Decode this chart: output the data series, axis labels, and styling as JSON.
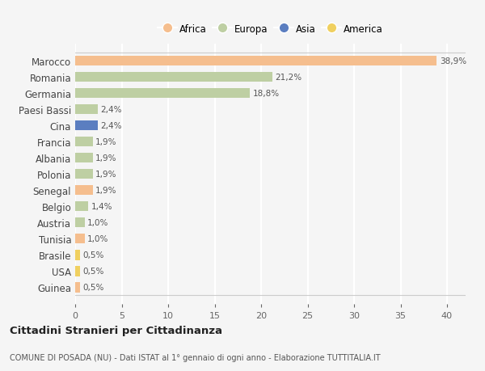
{
  "countries": [
    "Guinea",
    "USA",
    "Brasile",
    "Tunisia",
    "Austria",
    "Belgio",
    "Senegal",
    "Polonia",
    "Albania",
    "Francia",
    "Cina",
    "Paesi Bassi",
    "Germania",
    "Romania",
    "Marocco"
  ],
  "values": [
    0.5,
    0.5,
    0.5,
    1.0,
    1.0,
    1.4,
    1.9,
    1.9,
    1.9,
    1.9,
    2.4,
    2.4,
    18.8,
    21.2,
    38.9
  ],
  "labels": [
    "0,5%",
    "0,5%",
    "0,5%",
    "1,0%",
    "1,0%",
    "1,4%",
    "1,9%",
    "1,9%",
    "1,9%",
    "1,9%",
    "2,4%",
    "2,4%",
    "18,8%",
    "21,2%",
    "38,9%"
  ],
  "continents": [
    "Africa",
    "America",
    "America",
    "Africa",
    "Europa",
    "Europa",
    "Africa",
    "Europa",
    "Europa",
    "Europa",
    "Asia",
    "Europa",
    "Europa",
    "Europa",
    "Africa"
  ],
  "colors": {
    "Africa": "#F5BE8E",
    "Europa": "#BECFA3",
    "Asia": "#5B7EC0",
    "America": "#F0D060"
  },
  "background_color": "#F5F5F5",
  "title": "Cittadini Stranieri per Cittadinanza",
  "subtitle": "COMUNE DI POSADA (NU) - Dati ISTAT al 1° gennaio di ogni anno - Elaborazione TUTTITALIA.IT",
  "xlim": [
    0,
    42
  ],
  "xticks": [
    0,
    5,
    10,
    15,
    20,
    25,
    30,
    35,
    40
  ],
  "legend_order": [
    "Africa",
    "Europa",
    "Asia",
    "America"
  ]
}
